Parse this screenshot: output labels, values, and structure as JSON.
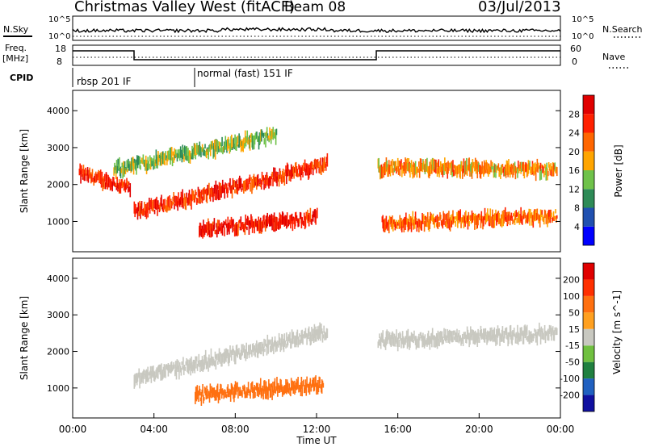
{
  "header": {
    "title": "Christmas Valley West (fitACF)",
    "beam": "Beam 08",
    "date": "03/Jul/2013"
  },
  "top_panels": {
    "nsky_label": "N.Sky",
    "nsearch_label": "N.Search",
    "freq_label_1": "Freq.",
    "freq_label_2": "[MHz]",
    "nave_label": "Nave",
    "cpid_label": "CPID",
    "noise_left_ticks": [
      "10^5",
      "10^0"
    ],
    "noise_right_ticks": [
      "10^5",
      "10^0"
    ],
    "freq_ticks": [
      "18",
      "8"
    ],
    "nave_ticks": [
      "60",
      "0"
    ],
    "cpid_modes": [
      {
        "label": "rbsp 201 IF",
        "start_hour": 0.0,
        "end_hour": 6.0
      },
      {
        "label": "normal (fast) 151 IF",
        "start_hour": 6.0,
        "end_hour": 24.0
      }
    ]
  },
  "chart_data": [
    {
      "type": "heatmap",
      "panel": "power",
      "xlabel": "",
      "ylabel": "Slant Range [km]",
      "xlim": [
        0,
        24
      ],
      "ylim": [
        180,
        4550
      ],
      "yticks": [
        1000,
        2000,
        3000,
        4000
      ],
      "colorbar": {
        "label": "Power [dB]",
        "levels": [
          4,
          8,
          12,
          16,
          20,
          24,
          28
        ],
        "colors": [
          "#0000ff",
          "#2050b0",
          "#2e8b57",
          "#6fc24a",
          "#ffa500",
          "#ff6600",
          "#ff2000",
          "#e00000"
        ]
      },
      "features": [
        {
          "start_hour": 0.3,
          "end_hour": 2.8,
          "range_start_km": 2300,
          "range_end_km": 1900,
          "power_db": 26
        },
        {
          "start_hour": 3.0,
          "end_hour": 12.5,
          "range_start_km": 1250,
          "range_end_km": 2550,
          "power_db": 26
        },
        {
          "start_hour": 6.2,
          "end_hour": 12.0,
          "range_start_km": 780,
          "range_end_km": 1100,
          "power_db": 28
        },
        {
          "start_hour": 2.0,
          "end_hour": 10.0,
          "range_start_km": 2400,
          "range_end_km": 3350,
          "power_db": 14
        },
        {
          "start_hour": 15.0,
          "end_hour": 23.8,
          "range_start_km": 2450,
          "range_end_km": 2400,
          "power_db": 20
        },
        {
          "start_hour": 15.2,
          "end_hour": 23.8,
          "range_start_km": 950,
          "range_end_km": 1150,
          "power_db": 22
        }
      ]
    },
    {
      "type": "heatmap",
      "panel": "velocity",
      "xlabel": "Time UT",
      "ylabel": "Slant Range [km]",
      "xlim": [
        0,
        24
      ],
      "ylim": [
        180,
        4550
      ],
      "xticks": [
        "00:00",
        "04:00",
        "08:00",
        "12:00",
        "16:00",
        "20:00",
        "00:00"
      ],
      "yticks": [
        1000,
        2000,
        3000,
        4000
      ],
      "colorbar": {
        "label": "Velocity [m s^-1]",
        "levels": [
          200,
          100,
          50,
          15,
          -15,
          -50,
          -100,
          -200
        ],
        "colors": [
          "#1010a0",
          "#2060c0",
          "#208040",
          "#70c040",
          "#c8c8c0",
          "#ffa020",
          "#ff7010",
          "#ff3000",
          "#e00000"
        ]
      },
      "features": [
        {
          "start_hour": 6.0,
          "end_hour": 12.3,
          "range_start_km": 800,
          "range_end_km": 1100,
          "velocity": -70
        },
        {
          "start_hour": 3.0,
          "end_hour": 12.5,
          "range_start_km": 1250,
          "range_end_km": 2550,
          "velocity": 0
        },
        {
          "start_hour": 15.0,
          "end_hour": 23.8,
          "range_start_km": 2300,
          "range_end_km": 2500,
          "velocity": 0
        }
      ]
    }
  ]
}
